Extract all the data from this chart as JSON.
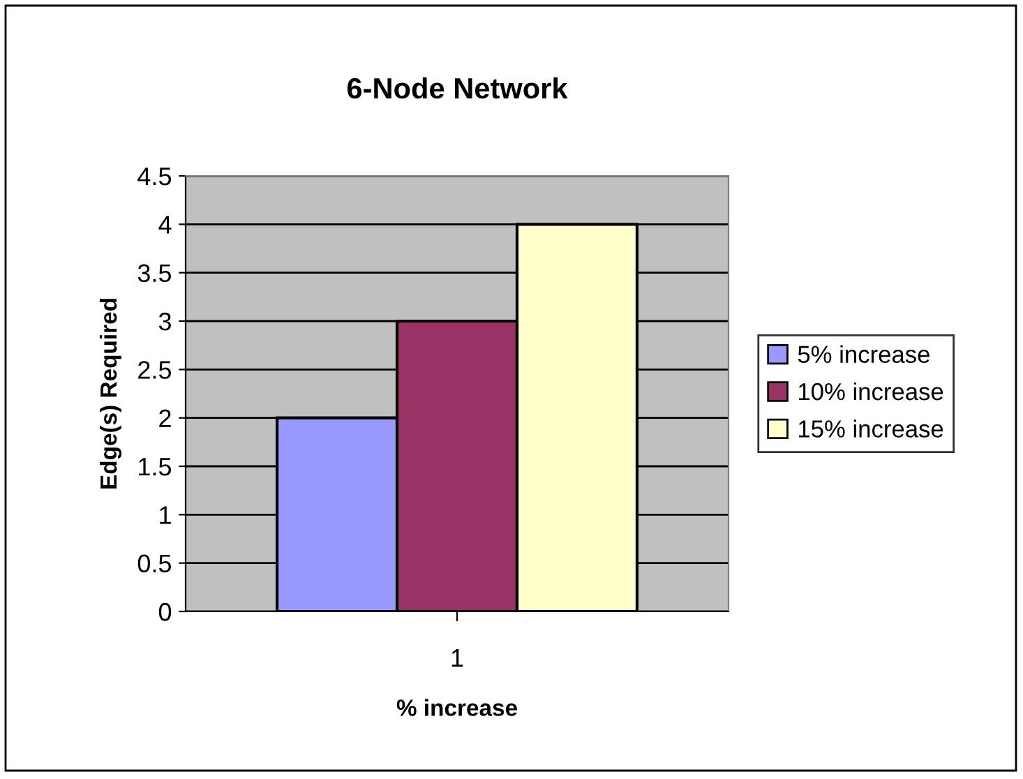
{
  "chart_data": {
    "type": "bar",
    "title": "6-Node Network",
    "xlabel": "% increase",
    "ylabel": "Edge(s) Required",
    "categories": [
      "1"
    ],
    "series": [
      {
        "name": "5% increase",
        "color": "#9999ff",
        "values": [
          2
        ]
      },
      {
        "name": "10% increase",
        "color": "#993366",
        "values": [
          3
        ]
      },
      {
        "name": "15% increase",
        "color": "#ffffcc",
        "values": [
          4
        ]
      }
    ],
    "ylim": [
      0,
      4.5
    ],
    "yticks": [
      0,
      0.5,
      1,
      1.5,
      2,
      2.5,
      3,
      3.5,
      4,
      4.5
    ],
    "grid": "y",
    "legend": "right"
  }
}
